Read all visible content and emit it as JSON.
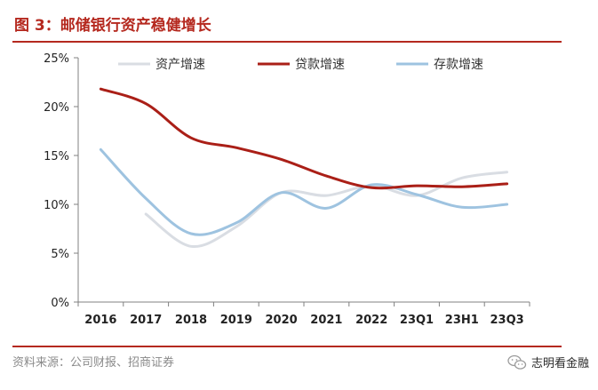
{
  "figure": {
    "title": "图 3：邮储银行资产稳健增长",
    "source": "资料来源：公司财报、招商证券",
    "brand": "志明看金融"
  },
  "chart_data": {
    "type": "line",
    "categories": [
      "2016",
      "2017",
      "2018",
      "2019",
      "2020",
      "2021",
      "2022",
      "23Q1",
      "23H1",
      "23Q3"
    ],
    "y_ticks": [
      "0%",
      "5%",
      "10%",
      "15%",
      "20%",
      "25%"
    ],
    "ylim": [
      0,
      25
    ],
    "xlabel": "",
    "ylabel": "",
    "legend_position": "top",
    "series": [
      {
        "name": "资产增速",
        "color": "#d9dde3",
        "values": [
          null,
          9.0,
          5.7,
          7.7,
          11.2,
          10.9,
          11.9,
          10.9,
          12.7,
          13.3
        ]
      },
      {
        "name": "贷款增速",
        "color": "#aa1f17",
        "values": [
          21.8,
          20.3,
          16.8,
          15.8,
          14.6,
          12.9,
          11.7,
          11.9,
          11.8,
          12.1
        ]
      },
      {
        "name": "存款增速",
        "color": "#9ec3e0",
        "values": [
          15.6,
          10.6,
          7.0,
          8.1,
          11.2,
          9.6,
          12.0,
          11.0,
          9.7,
          10.0
        ]
      }
    ]
  }
}
